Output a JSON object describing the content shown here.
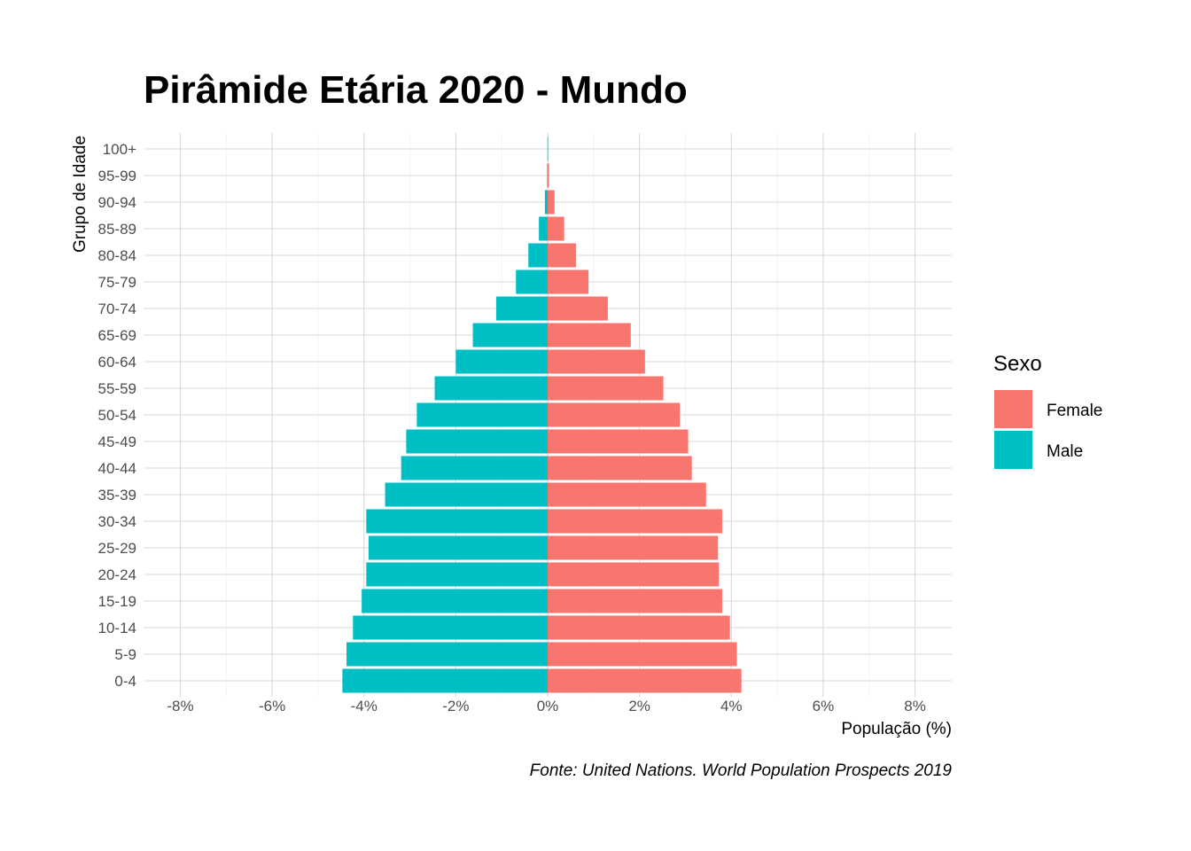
{
  "chart_data": {
    "type": "bar",
    "orientation": "horizontal-pyramid",
    "title": "Pirâmide Etária 2020 - Mundo",
    "xlabel": "População (%)",
    "ylabel": "Grupo de Idade",
    "caption": "Fonte: United Nations. World Population Prospects 2019",
    "xlim": [
      -8.8,
      8.8
    ],
    "x_ticks": [
      -8,
      -6,
      -4,
      -2,
      0,
      2,
      4,
      6,
      8
    ],
    "x_tick_labels": [
      "-8%",
      "-6%",
      "-4%",
      "-2%",
      "0%",
      "2%",
      "4%",
      "6%",
      "8%"
    ],
    "grid": true,
    "legend_position": "right",
    "legend_title": "Sexo",
    "categories": [
      "0-4",
      "5-9",
      "10-14",
      "15-19",
      "20-24",
      "25-29",
      "30-34",
      "35-39",
      "40-44",
      "45-49",
      "50-54",
      "55-59",
      "60-64",
      "65-69",
      "70-74",
      "75-79",
      "80-84",
      "85-89",
      "90-94",
      "95-99",
      "100+"
    ],
    "series": [
      {
        "name": "Female",
        "color": "#F8766D",
        "values": [
          4.22,
          4.12,
          3.97,
          3.8,
          3.73,
          3.71,
          3.8,
          3.45,
          3.14,
          3.06,
          2.88,
          2.52,
          2.12,
          1.81,
          1.31,
          0.89,
          0.62,
          0.36,
          0.15,
          0.03,
          0.01
        ]
      },
      {
        "name": "Male",
        "color": "#00BFC4",
        "values": [
          -4.47,
          -4.38,
          -4.24,
          -4.05,
          -3.95,
          -3.9,
          -3.95,
          -3.54,
          -3.19,
          -3.08,
          -2.85,
          -2.46,
          -2.0,
          -1.63,
          -1.12,
          -0.69,
          -0.42,
          -0.19,
          -0.06,
          -0.01,
          -0.003
        ]
      }
    ]
  }
}
